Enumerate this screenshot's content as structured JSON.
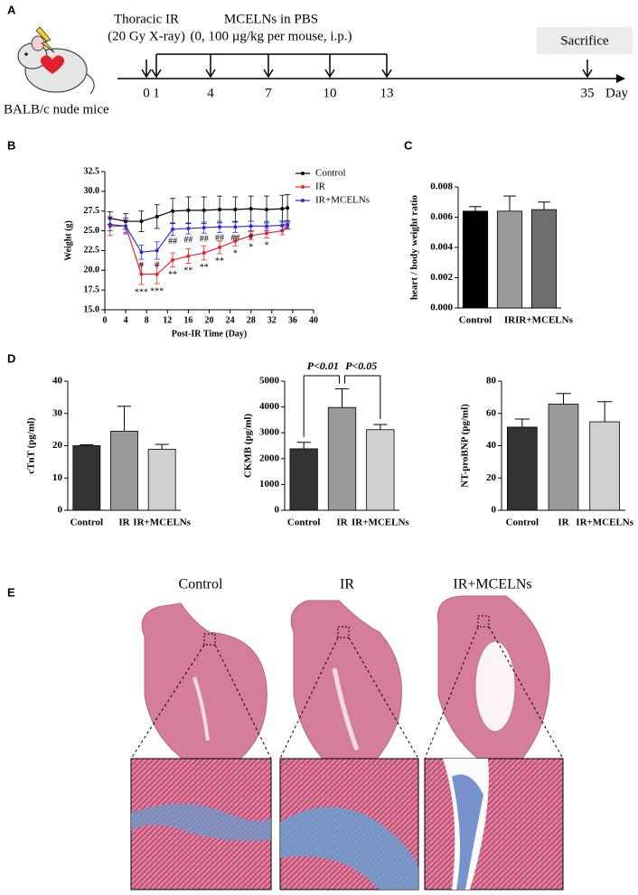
{
  "panel_labels": [
    "A",
    "B",
    "C",
    "D",
    "E"
  ],
  "timeline": {
    "irradiation": "Thoracic IR",
    "irradiation_dose": "(20 Gy X-ray)",
    "treatment": "MCELNs in PBS",
    "treatment_dose": "(0, 100 µg/kg per mouse, i.p.)",
    "endpoint": "Sacrifice",
    "subject": "BALB/c nude mice",
    "days": [
      0,
      1,
      4,
      7,
      10,
      13,
      35
    ],
    "unit": "Day"
  },
  "chart_data": [
    {
      "type": "line",
      "xlabel": "Post-IR Time (Day)",
      "ylabel": "Weight (g)",
      "x": [
        1,
        4,
        7,
        10,
        13,
        16,
        19,
        22,
        25,
        28,
        31,
        34,
        35
      ],
      "series": [
        {
          "name": "Control",
          "color": "#000000",
          "values": [
            26.6,
            26.2,
            26.2,
            26.8,
            27.5,
            27.6,
            27.6,
            27.7,
            27.7,
            27.8,
            27.7,
            27.8,
            27.9
          ],
          "errors": [
            0.8,
            1.0,
            1.3,
            1.5,
            1.6,
            1.7,
            1.7,
            1.7,
            1.6,
            1.6,
            1.7,
            1.7,
            1.7
          ]
        },
        {
          "name": "IR",
          "color": "#e8242a",
          "values": [
            25.6,
            25.6,
            19.5,
            19.5,
            21.3,
            21.8,
            22.2,
            22.9,
            23.7,
            24.4,
            24.7,
            25.0,
            25.6
          ],
          "errors": [
            1.2,
            0.8,
            1.3,
            1.2,
            0.9,
            0.9,
            0.9,
            0.8,
            0.6,
            0.5,
            0.6,
            0.5,
            0.4
          ],
          "significance": [
            null,
            null,
            "***",
            "***",
            "**",
            "**",
            "**",
            "**",
            "*",
            "*",
            "*",
            null,
            null
          ]
        },
        {
          "name": "IR+MCELNs",
          "color": "#2b2bd8",
          "values": [
            25.8,
            25.6,
            22.3,
            22.5,
            25.2,
            25.3,
            25.4,
            25.5,
            25.5,
            25.6,
            25.6,
            25.7,
            25.8
          ],
          "errors": [
            0.8,
            1.0,
            0.9,
            1.1,
            0.8,
            0.7,
            0.7,
            0.7,
            0.7,
            0.6,
            0.6,
            0.6,
            0.5
          ],
          "significance": [
            null,
            null,
            "#",
            "#",
            "##",
            "##",
            "##",
            "##",
            "##",
            "#",
            null,
            null,
            null
          ]
        }
      ],
      "xlim": [
        0,
        40
      ],
      "xticks": [
        0,
        4,
        8,
        12,
        16,
        20,
        24,
        28,
        32,
        36,
        40
      ],
      "ylim": [
        15,
        32.5
      ],
      "yticks": [
        {
          "value": 15,
          "label": "15.0"
        },
        17.5,
        {
          "value": 20,
          "label": "20.0"
        },
        22.5,
        {
          "value": 25,
          "label": "25.0"
        },
        27.5,
        {
          "value": 30,
          "label": "30.0"
        },
        32.5
      ],
      "legend": "upper right"
    },
    {
      "type": "bar",
      "ylabel": "heart / body weight ratio",
      "categories": [
        "Control",
        "IR",
        "IR+MCELNs"
      ],
      "values": [
        0.0064,
        0.0064,
        0.0065
      ],
      "errors": [
        0.0003,
        0.001,
        0.0005
      ],
      "colors": [
        "#000000",
        "#9a9a9a",
        "#6e6e6e"
      ],
      "ylim": [
        0,
        0.008
      ],
      "yticks": [
        {
          "value": 0,
          "label": "0.000"
        },
        0.002,
        0.004,
        0.006,
        0.008
      ]
    },
    {
      "type": "bar",
      "ylabel": "cTnT (pg/ml)",
      "categories": [
        "Control",
        "IR",
        "IR+MCELNs"
      ],
      "values": [
        20,
        24.5,
        18.9
      ],
      "errors": [
        0.3,
        7.7,
        1.5
      ],
      "colors": [
        "#333333",
        "#999999",
        "#d0d0d0"
      ],
      "ylim": [
        0,
        40
      ],
      "yticks": [
        0,
        10,
        20,
        30,
        40
      ]
    },
    {
      "type": "bar",
      "ylabel": "CKMB (pg/ml)",
      "categories": [
        "Control",
        "IR",
        "IR+MCELNs"
      ],
      "values": [
        2380,
        3980,
        3120
      ],
      "errors": [
        250,
        720,
        200
      ],
      "colors": [
        "#333333",
        "#999999",
        "#d0d0d0"
      ],
      "ylim": [
        0,
        5000
      ],
      "yticks": [
        0,
        1000,
        2000,
        3000,
        4000,
        5000
      ],
      "comparisons": [
        {
          "label": "P<0.01",
          "from": 0,
          "to": 1
        },
        {
          "label": "P<0.05",
          "from": 1,
          "to": 2
        }
      ]
    },
    {
      "type": "bar",
      "ylabel": "NT-proBNP (pg/ml)",
      "categories": [
        "Control",
        "IR",
        "IR+MCELNs"
      ],
      "values": [
        51.5,
        65.8,
        54.8
      ],
      "errors": [
        5,
        6.5,
        12.5
      ],
      "colors": [
        "#333333",
        "#999999",
        "#d0d0d0"
      ],
      "ylim": [
        0,
        80
      ],
      "yticks": [
        0,
        20,
        40,
        60,
        80
      ]
    }
  ],
  "histology": {
    "groups": [
      "Control",
      "IR",
      "IR+MCELNs"
    ]
  }
}
